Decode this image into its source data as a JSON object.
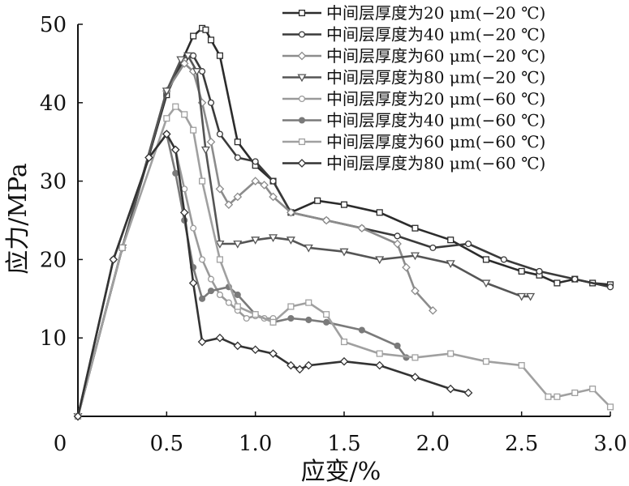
{
  "chart_data": {
    "type": "line",
    "title": "",
    "xlabel": "应变/%",
    "ylabel": "应力/MPa",
    "xlim": [
      0,
      3.0
    ],
    "ylim": [
      0,
      50
    ],
    "x_ticks": [
      "0",
      "0.5",
      "1.0",
      "1.5",
      "2.0",
      "2.5",
      "3.0"
    ],
    "y_ticks": [
      "10",
      "20",
      "30",
      "40",
      "50"
    ],
    "grid": false,
    "legend_position": "top-right",
    "series": [
      {
        "name": "中间层厚度为20 μm(−20 ℃)",
        "color": "#2b2b2b",
        "marker": "square",
        "x": [
          0,
          0.25,
          0.5,
          0.65,
          0.7,
          0.72,
          0.75,
          0.8,
          0.9,
          1.0,
          1.1,
          1.2,
          1.35,
          1.5,
          1.7,
          1.9,
          2.1,
          2.3,
          2.5,
          2.6,
          2.7,
          2.8,
          2.9,
          3.0
        ],
        "y": [
          0,
          21.5,
          41,
          48.5,
          49.5,
          49.3,
          48,
          46,
          35,
          32,
          30,
          26,
          27.5,
          27,
          26,
          24,
          22.5,
          20,
          18.5,
          18,
          17,
          17.5,
          17,
          16.8
        ]
      },
      {
        "name": "中间层厚度为40 μm(−20 ℃)",
        "color": "#3a3a3a",
        "marker": "circle",
        "x": [
          0,
          0.25,
          0.5,
          0.6,
          0.65,
          0.7,
          0.75,
          0.8,
          0.9,
          1.0,
          1.1,
          1.2,
          1.4,
          1.6,
          1.8,
          2.0,
          2.2,
          2.4,
          2.6,
          2.8,
          3.0
        ],
        "y": [
          0,
          21.5,
          41.5,
          45.5,
          46,
          44,
          40,
          36,
          33,
          32.5,
          30,
          26,
          25,
          24,
          23,
          21.5,
          22,
          20,
          18.5,
          17.5,
          16.5
        ]
      },
      {
        "name": "中间层厚度为60 μm(−20 ℃)",
        "color": "#8c8c8c",
        "marker": "diamond",
        "x": [
          0,
          0.25,
          0.5,
          0.6,
          0.65,
          0.7,
          0.75,
          0.8,
          0.85,
          0.9,
          1.0,
          1.05,
          1.1,
          1.2,
          1.4,
          1.6,
          1.8,
          1.85,
          1.9,
          2.0
        ],
        "y": [
          0,
          21.5,
          41.5,
          45,
          44,
          40,
          35,
          29,
          27,
          28,
          30,
          29.5,
          28,
          26,
          25,
          24,
          22,
          19,
          16,
          13.5
        ]
      },
      {
        "name": "中间层厚度为80 μm(−20 ℃)",
        "color": "#555555",
        "marker": "triangle-down",
        "x": [
          0,
          0.25,
          0.5,
          0.58,
          0.62,
          0.67,
          0.72,
          0.8,
          0.9,
          1.0,
          1.1,
          1.2,
          1.3,
          1.5,
          1.7,
          1.9,
          2.1,
          2.3,
          2.5,
          2.55
        ],
        "y": [
          0,
          21.5,
          41.5,
          45.5,
          46,
          44,
          34,
          22,
          22,
          22.5,
          22.8,
          22.5,
          21.5,
          21,
          20,
          20.5,
          19.5,
          17,
          15.3,
          15.3
        ]
      },
      {
        "name": "中间层厚度为20 μm(−60 ℃)",
        "color": "#9a9a9a",
        "marker": "circle",
        "x": [
          0,
          0.2,
          0.4,
          0.5,
          0.55,
          0.6,
          0.65,
          0.7,
          0.75,
          0.8,
          0.85,
          0.9,
          0.95,
          1.0,
          1.05,
          1.1
        ],
        "y": [
          0,
          20,
          33,
          36,
          34,
          29,
          24,
          20,
          17.5,
          15.5,
          14.5,
          13.5,
          12.5,
          12.8,
          12.5,
          12.5
        ]
      },
      {
        "name": "中间层厚度为40 μm(−60 ℃)",
        "color": "#7a7a7a",
        "marker": "half-circle",
        "x": [
          0,
          0.2,
          0.4,
          0.5,
          0.55,
          0.6,
          0.65,
          0.7,
          0.75,
          0.85,
          0.9,
          1.0,
          1.1,
          1.2,
          1.3,
          1.4,
          1.6,
          1.8,
          1.85
        ],
        "y": [
          0,
          20,
          33,
          36,
          31,
          25,
          19,
          15,
          16,
          16.5,
          15.5,
          13,
          12,
          12.5,
          12.3,
          12,
          11,
          9,
          7.5
        ]
      },
      {
        "name": "中间层厚度为60 μm(−60 ℃)",
        "color": "#a0a0a0",
        "marker": "square",
        "x": [
          0,
          0.25,
          0.5,
          0.55,
          0.6,
          0.65,
          0.7,
          0.8,
          0.9,
          1.0,
          1.1,
          1.2,
          1.3,
          1.4,
          1.5,
          1.7,
          1.9,
          2.1,
          2.3,
          2.5,
          2.65,
          2.7,
          2.8,
          2.9,
          3.0
        ],
        "y": [
          0,
          21.5,
          38,
          39.5,
          38.5,
          36.5,
          30,
          20,
          14,
          13,
          12,
          14,
          14.5,
          13,
          9.5,
          8,
          7.5,
          8,
          7,
          6.5,
          2.5,
          2.5,
          3,
          3.5,
          1.2
        ]
      },
      {
        "name": "中间层厚度为80 μm(−60 ℃)",
        "color": "#333333",
        "marker": "diamond",
        "x": [
          0,
          0.2,
          0.4,
          0.5,
          0.55,
          0.6,
          0.65,
          0.7,
          0.8,
          0.9,
          1.0,
          1.1,
          1.2,
          1.25,
          1.3,
          1.5,
          1.7,
          1.9,
          2.1,
          2.2
        ],
        "y": [
          0,
          20,
          33,
          36,
          34,
          26,
          17,
          9.5,
          10,
          9,
          8.5,
          8,
          6.5,
          6,
          6.5,
          7,
          6.5,
          5,
          3.5,
          3
        ]
      }
    ]
  }
}
